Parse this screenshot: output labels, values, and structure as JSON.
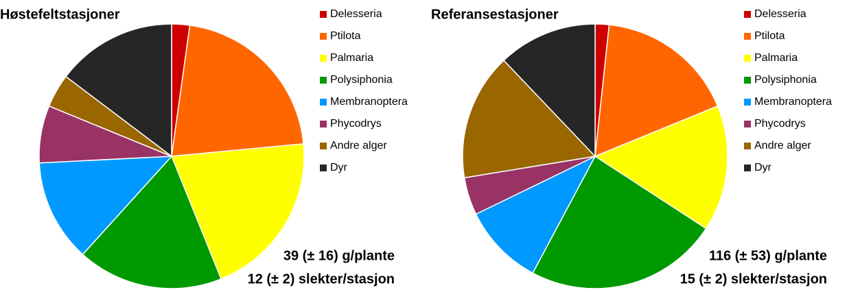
{
  "chart_data": [
    {
      "type": "pie",
      "title": "Høstefeltstasjoner",
      "categories": [
        "Delesseria",
        "Ptilota",
        "Palmaria",
        "Polysiphonia",
        "Membranoptera",
        "Phycodrys",
        "Andre alger",
        "Dyr"
      ],
      "values": [
        2.2,
        21.3,
        20.4,
        17.8,
        12.5,
        7.0,
        4.1,
        14.7
      ],
      "colors": [
        "#cc0000",
        "#ff6600",
        "#ffff00",
        "#009900",
        "#0099ff",
        "#993366",
        "#996600",
        "#262626"
      ],
      "annotations": [
        "39 (± 16) g/plante",
        "12 (± 2) slekter/stasjon"
      ]
    },
    {
      "type": "pie",
      "title": "Referansestasjoner",
      "categories": [
        "Delesseria",
        "Ptilota",
        "Palmaria",
        "Polysiphonia",
        "Membranoptera",
        "Phycodrys",
        "Andre alger",
        "Dyr"
      ],
      "values": [
        1.7,
        17.1,
        15.4,
        23.6,
        10.0,
        4.6,
        15.5,
        12.1
      ],
      "colors": [
        "#cc0000",
        "#ff6600",
        "#ffff00",
        "#009900",
        "#0099ff",
        "#993366",
        "#996600",
        "#262626"
      ],
      "annotations": [
        "116 (± 53) g/plante",
        "15 (± 2) slekter/stasjon"
      ]
    }
  ]
}
